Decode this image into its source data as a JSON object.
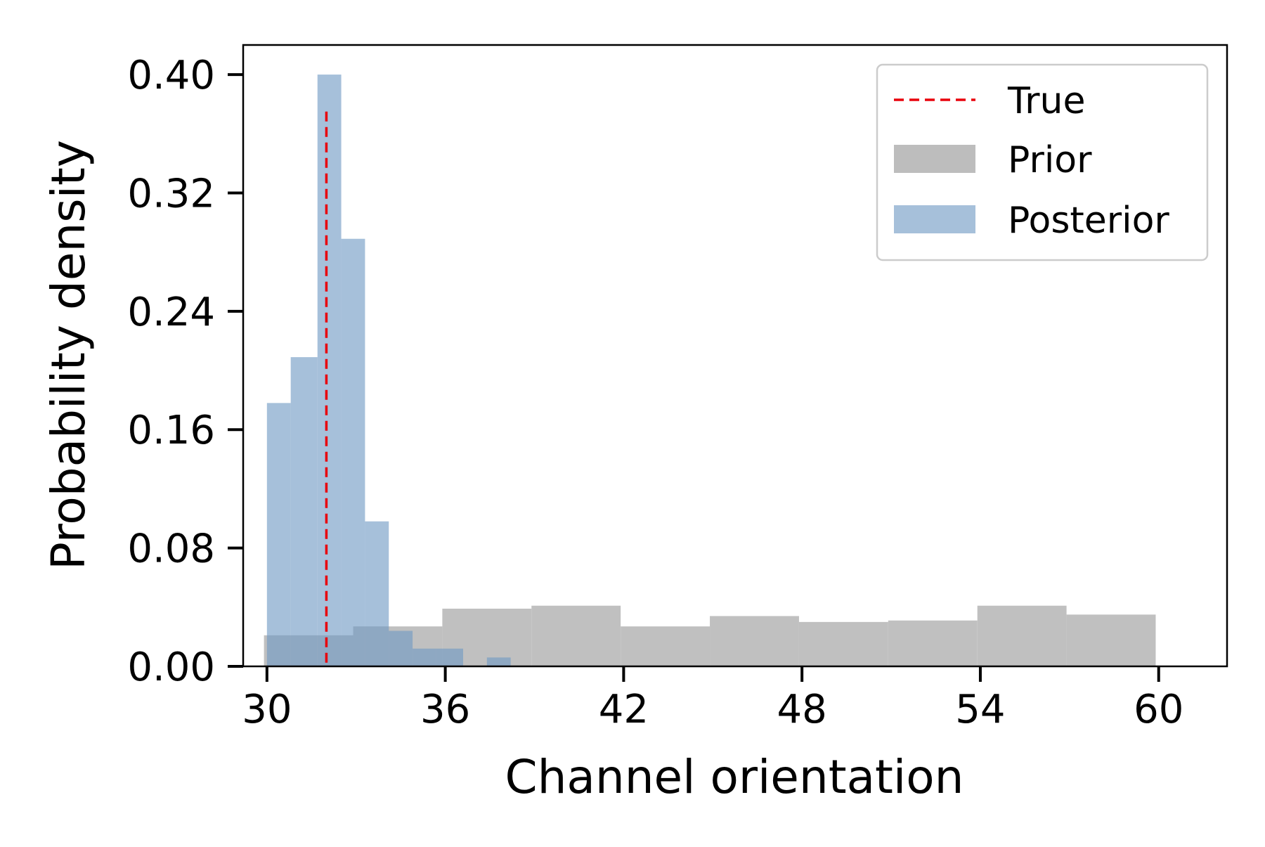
{
  "chart_data": {
    "type": "bar",
    "subtype": "overlaid-histogram",
    "title": "",
    "xlabel": "Channel orientation",
    "ylabel": "Probability density",
    "xlim": [
      29.2,
      62.3
    ],
    "ylim": [
      0,
      0.42
    ],
    "xticks": [
      30,
      36,
      42,
      48,
      54,
      60
    ],
    "yticks": [
      0.0,
      0.08,
      0.16,
      0.24,
      0.32,
      0.4
    ],
    "xtick_labels": [
      "30",
      "36",
      "42",
      "48",
      "54",
      "60"
    ],
    "ytick_labels": [
      "0.00",
      "0.08",
      "0.16",
      "0.24",
      "0.32",
      "0.40"
    ],
    "grid": false,
    "legend_position": "top-right",
    "true_value": {
      "name": "True",
      "x": 32.0,
      "y_top": 0.375,
      "color": "#e8000b",
      "style": "dashed"
    },
    "series": [
      {
        "name": "Prior",
        "color": "#bdbdbd",
        "bins": [
          {
            "x0": 29.9,
            "x1": 32.9,
            "y": 0.021
          },
          {
            "x0": 32.9,
            "x1": 35.9,
            "y": 0.027
          },
          {
            "x0": 35.9,
            "x1": 38.9,
            "y": 0.039
          },
          {
            "x0": 38.9,
            "x1": 41.9,
            "y": 0.041
          },
          {
            "x0": 41.9,
            "x1": 44.9,
            "y": 0.027
          },
          {
            "x0": 44.9,
            "x1": 47.9,
            "y": 0.034
          },
          {
            "x0": 47.9,
            "x1": 50.9,
            "y": 0.03
          },
          {
            "x0": 50.9,
            "x1": 53.9,
            "y": 0.031
          },
          {
            "x0": 53.9,
            "x1": 56.9,
            "y": 0.041
          },
          {
            "x0": 56.9,
            "x1": 59.9,
            "y": 0.035
          }
        ]
      },
      {
        "name": "Posterior",
        "color": "#6f9ac3",
        "bins": [
          {
            "x0": 30.0,
            "x1": 30.8,
            "y": 0.178
          },
          {
            "x0": 30.8,
            "x1": 31.7,
            "y": 0.209
          },
          {
            "x0": 31.7,
            "x1": 32.5,
            "y": 0.4
          },
          {
            "x0": 32.5,
            "x1": 33.3,
            "y": 0.289
          },
          {
            "x0": 33.3,
            "x1": 34.1,
            "y": 0.098
          },
          {
            "x0": 34.1,
            "x1": 34.9,
            "y": 0.024
          },
          {
            "x0": 34.9,
            "x1": 35.7,
            "y": 0.012
          },
          {
            "x0": 35.7,
            "x1": 36.6,
            "y": 0.012
          },
          {
            "x0": 36.6,
            "x1": 37.4,
            "y": 0.0
          },
          {
            "x0": 37.4,
            "x1": 38.2,
            "y": 0.006
          }
        ]
      }
    ]
  }
}
